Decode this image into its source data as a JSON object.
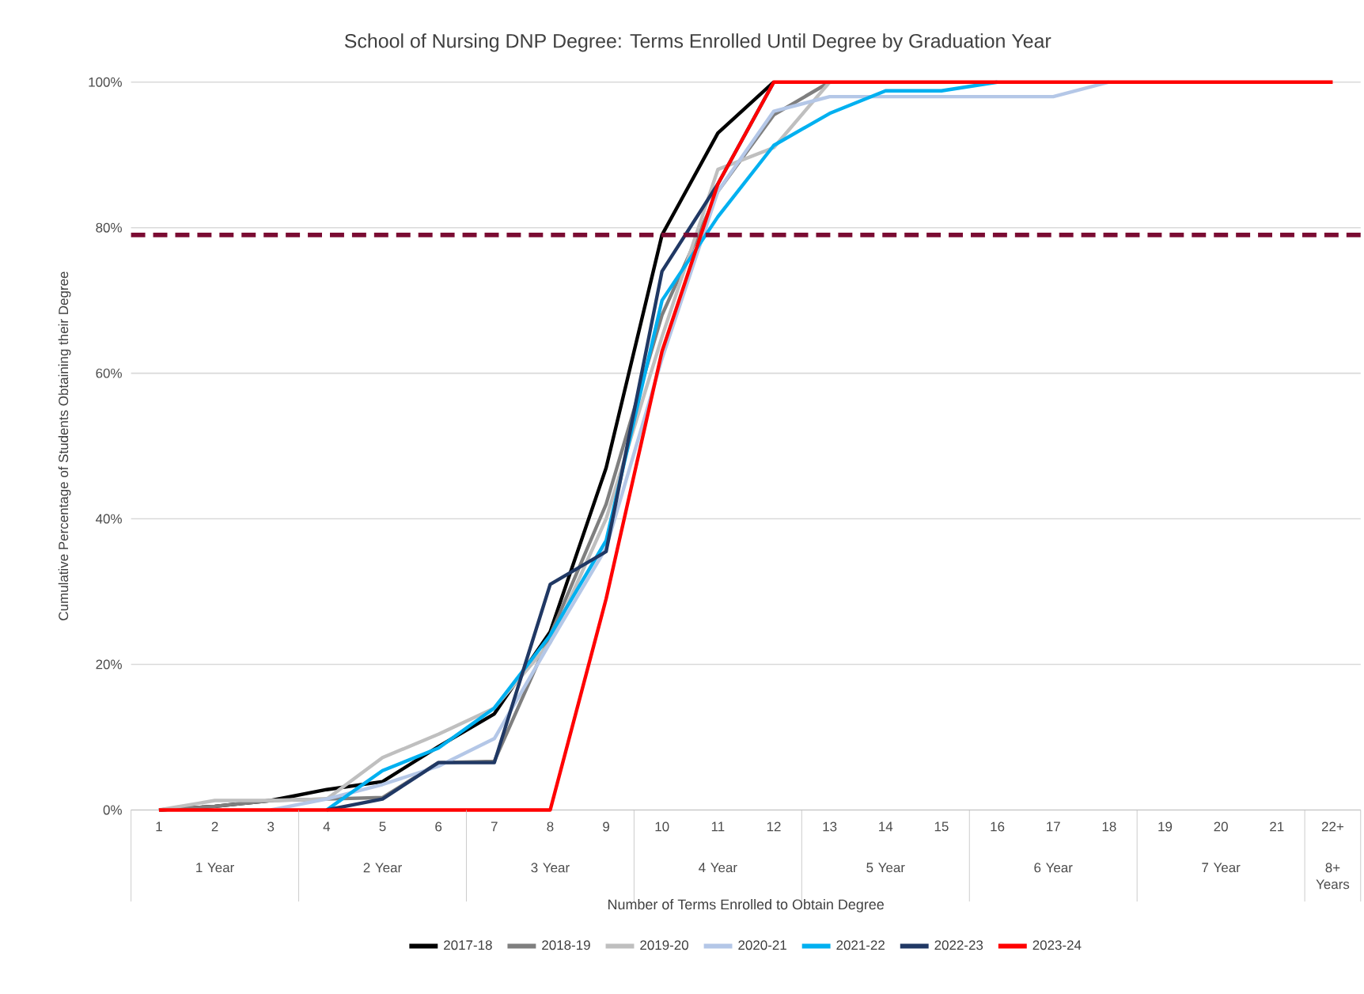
{
  "chart_data": {
    "type": "line",
    "title": "School of Nursing DNP Degree: Terms Enrolled Until Degree by Graduation Year",
    "xlabel": "Number of Terms Enrolled to Obtain Degree",
    "ylabel": "Cumulative Percentage of Students Obtaining their Degree",
    "categories": [
      "1",
      "2",
      "3",
      "4",
      "5",
      "6",
      "7",
      "8",
      "9",
      "10",
      "11",
      "12",
      "13",
      "14",
      "15",
      "16",
      "17",
      "18",
      "19",
      "20",
      "21",
      "22+"
    ],
    "series": [
      {
        "name": "2017-18",
        "color": "#000000",
        "values": [
          0,
          0.5,
          1.3,
          2.8,
          3.9,
          8.7,
          13.2,
          24.5,
          47,
          79,
          93,
          100,
          null,
          null,
          null,
          null,
          null,
          null,
          null,
          null,
          null,
          null
        ]
      },
      {
        "name": "2018-19",
        "color": "#7f7f7f",
        "values": [
          0,
          0.5,
          1.3,
          1.5,
          1.7,
          6.5,
          6.7,
          24,
          42,
          68,
          85,
          95.5,
          100,
          null,
          null,
          null,
          null,
          null,
          null,
          null,
          null,
          null
        ]
      },
      {
        "name": "2019-20",
        "color": "#bfbfbf",
        "values": [
          0,
          1.3,
          1.3,
          1.5,
          7.2,
          10.4,
          14,
          23,
          40,
          65,
          88,
          91,
          100,
          null,
          null,
          null,
          null,
          null,
          null,
          null,
          null,
          null
        ]
      },
      {
        "name": "2020-21",
        "color": "#b4c7e7",
        "values": [
          null,
          null,
          0,
          1.5,
          3.5,
          6,
          9.8,
          23,
          36,
          62,
          85,
          96,
          98,
          98,
          98,
          98,
          98,
          100,
          null,
          null,
          null,
          null
        ]
      },
      {
        "name": "2021-22",
        "color": "#00b0f0",
        "values": [
          null,
          null,
          null,
          0,
          5.4,
          8.5,
          14,
          24,
          37,
          70,
          81.5,
          91.3,
          95.7,
          98.8,
          98.8,
          100,
          null,
          null,
          null,
          null,
          null,
          null
        ]
      },
      {
        "name": "2022-23",
        "color": "#203864",
        "values": [
          null,
          null,
          null,
          0,
          1.5,
          6.5,
          6.5,
          31,
          35.5,
          74,
          86,
          100,
          null,
          null,
          null,
          null,
          null,
          null,
          null,
          null,
          null,
          null
        ]
      },
      {
        "name": "2023-24",
        "color": "#ff0000",
        "values": [
          0,
          0,
          0,
          0,
          0,
          0,
          0,
          0,
          29,
          63,
          86,
          100,
          100,
          100,
          100,
          100,
          100,
          100,
          100,
          100,
          100,
          100
        ]
      }
    ],
    "ylim": [
      0,
      100
    ],
    "yticks": [
      {
        "value": 0,
        "label": "0%"
      },
      {
        "value": 20,
        "label": "20%"
      },
      {
        "value": 40,
        "label": "40%"
      },
      {
        "value": 60,
        "label": "60%"
      },
      {
        "value": 80,
        "label": "80%"
      },
      {
        "value": 100,
        "label": "100%"
      }
    ],
    "ref_lines": [
      {
        "axis": "y",
        "value": 79,
        "color": "#7b0c33",
        "line_style": "dashed"
      }
    ],
    "annotations": [
      "1 Year",
      "2 Year",
      "3 Year",
      "4 Year",
      "5 Year",
      "6 Year",
      "7 Year",
      "8+ Years"
    ],
    "grid": "y",
    "legend": "bottom",
    "marker": "none",
    "line_style": "solid"
  }
}
